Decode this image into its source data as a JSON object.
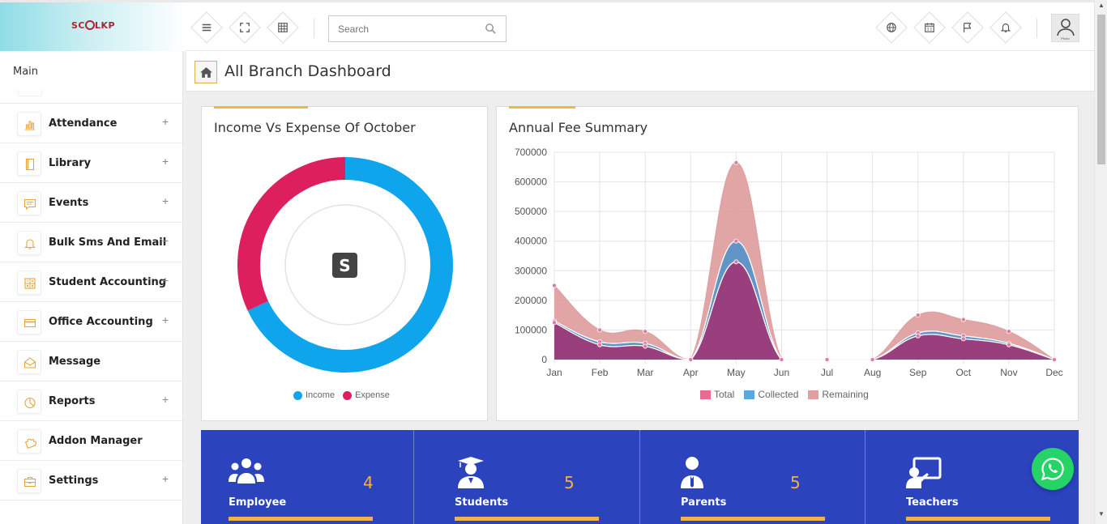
{
  "header": {
    "logo_text": "SC OL KP",
    "search_placeholder": "Search",
    "avatar_label": "Photo"
  },
  "sidebar": {
    "section": "Main",
    "items": [
      {
        "label": "Attendance",
        "icon": "bar-chart-icon",
        "expandable": true
      },
      {
        "label": "Library",
        "icon": "book-icon",
        "expandable": true
      },
      {
        "label": "Events",
        "icon": "chat-icon",
        "expandable": true
      },
      {
        "label": "Bulk Sms And Email",
        "icon": "bell-icon",
        "expandable": true
      },
      {
        "label": "Student Accounting",
        "icon": "calculator-icon",
        "expandable": true
      },
      {
        "label": "Office Accounting",
        "icon": "credit-card-icon",
        "expandable": true
      },
      {
        "label": "Message",
        "icon": "envelope-icon",
        "expandable": false
      },
      {
        "label": "Reports",
        "icon": "pie-icon",
        "expandable": true
      },
      {
        "label": "Addon Manager",
        "icon": "puzzle-icon",
        "expandable": false
      },
      {
        "label": "Settings",
        "icon": "briefcase-icon",
        "expandable": true
      }
    ],
    "plus_symbol": "+"
  },
  "page": {
    "title": "All Branch Dashboard"
  },
  "income_card": {
    "title": "Income Vs Expense Of October",
    "legend_income": "Income",
    "legend_expense": "Expense"
  },
  "fee_card": {
    "title": "Annual Fee Summary",
    "legend_total": "Total",
    "legend_collected": "Collected",
    "legend_remaining": "Remaining"
  },
  "stats": [
    {
      "name": "Employee",
      "value": "4"
    },
    {
      "name": "Students",
      "value": "5"
    },
    {
      "name": "Parents",
      "value": "5"
    },
    {
      "name": "Teachers",
      "value": ""
    }
  ],
  "colors": {
    "income": "#0ea5ec",
    "expense": "#dd1f5e",
    "total": "#e86b91",
    "collected": "#5aa8dc",
    "remaining": "#dfa0a0",
    "stat_band": "#2b44be",
    "accent": "#f4b04a"
  },
  "chart_data": [
    {
      "type": "pie",
      "title": "Income Vs Expense Of October",
      "categories": [
        "Income",
        "Expense"
      ],
      "values": [
        68,
        32
      ]
    },
    {
      "type": "area",
      "title": "Annual Fee Summary",
      "categories": [
        "Jan",
        "Feb",
        "Mar",
        "Apr",
        "May",
        "Jun",
        "Jul",
        "Aug",
        "Sep",
        "Oct",
        "Nov",
        "Dec"
      ],
      "ylim": [
        0,
        700000
      ],
      "yticks": [
        "0",
        "100000",
        "200000",
        "300000",
        "400000",
        "500000",
        "600000",
        "700000"
      ],
      "series": [
        {
          "name": "Total",
          "values": [
            125000,
            50000,
            45000,
            0,
            330000,
            0,
            0,
            0,
            80000,
            70000,
            50000,
            0
          ]
        },
        {
          "name": "Collected",
          "values": [
            130000,
            60000,
            55000,
            0,
            400000,
            0,
            0,
            0,
            90000,
            80000,
            55000,
            0
          ]
        },
        {
          "name": "Remaining",
          "values": [
            250000,
            100000,
            95000,
            0,
            665000,
            0,
            0,
            0,
            150000,
            135000,
            95000,
            0
          ]
        }
      ]
    }
  ]
}
